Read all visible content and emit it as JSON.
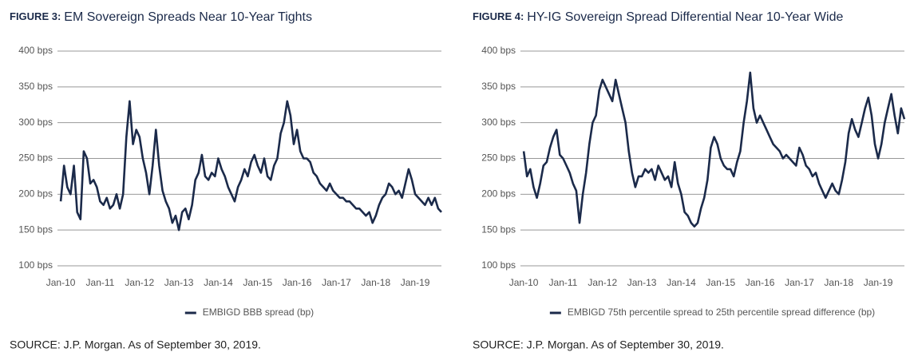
{
  "chart_data": [
    {
      "type": "line",
      "figure_label": "FIGURE 3:",
      "title": "EM Sovereign Spreads Near 10-Year Tights",
      "source": "SOURCE: J.P. Morgan. As of September 30, 2019.",
      "x": [
        "2010-01",
        "2010-02",
        "2010-03",
        "2010-04",
        "2010-05",
        "2010-06",
        "2010-07",
        "2010-08",
        "2010-09",
        "2010-10",
        "2010-11",
        "2010-12",
        "2011-01",
        "2011-02",
        "2011-03",
        "2011-04",
        "2011-05",
        "2011-06",
        "2011-07",
        "2011-08",
        "2011-09",
        "2011-10",
        "2011-11",
        "2011-12",
        "2012-01",
        "2012-02",
        "2012-03",
        "2012-04",
        "2012-05",
        "2012-06",
        "2012-07",
        "2012-08",
        "2012-09",
        "2012-10",
        "2012-11",
        "2012-12",
        "2013-01",
        "2013-02",
        "2013-03",
        "2013-04",
        "2013-05",
        "2013-06",
        "2013-07",
        "2013-08",
        "2013-09",
        "2013-10",
        "2013-11",
        "2013-12",
        "2014-01",
        "2014-02",
        "2014-03",
        "2014-04",
        "2014-05",
        "2014-06",
        "2014-07",
        "2014-08",
        "2014-09",
        "2014-10",
        "2014-11",
        "2014-12",
        "2015-01",
        "2015-02",
        "2015-03",
        "2015-04",
        "2015-05",
        "2015-06",
        "2015-07",
        "2015-08",
        "2015-09",
        "2015-10",
        "2015-11",
        "2015-12",
        "2016-01",
        "2016-02",
        "2016-03",
        "2016-04",
        "2016-05",
        "2016-06",
        "2016-07",
        "2016-08",
        "2016-09",
        "2016-10",
        "2016-11",
        "2016-12",
        "2017-01",
        "2017-02",
        "2017-03",
        "2017-04",
        "2017-05",
        "2017-06",
        "2017-07",
        "2017-08",
        "2017-09",
        "2017-10",
        "2017-11",
        "2017-12",
        "2018-01",
        "2018-02",
        "2018-03",
        "2018-04",
        "2018-05",
        "2018-06",
        "2018-07",
        "2018-08",
        "2018-09",
        "2018-10",
        "2018-11",
        "2018-12",
        "2019-01",
        "2019-02",
        "2019-03",
        "2019-04",
        "2019-05",
        "2019-06",
        "2019-07",
        "2019-08",
        "2019-09"
      ],
      "series": [
        {
          "name": "EMBIGD BBB spread (bp)",
          "color": "#1b2a4a",
          "values": [
            190,
            240,
            210,
            200,
            240,
            175,
            165,
            260,
            250,
            215,
            220,
            210,
            190,
            185,
            195,
            180,
            185,
            200,
            180,
            200,
            280,
            330,
            270,
            290,
            280,
            250,
            230,
            200,
            240,
            290,
            240,
            205,
            190,
            180,
            160,
            170,
            150,
            175,
            180,
            165,
            185,
            220,
            230,
            255,
            225,
            220,
            230,
            225,
            250,
            235,
            225,
            210,
            200,
            190,
            210,
            220,
            235,
            225,
            245,
            255,
            240,
            230,
            250,
            225,
            220,
            240,
            250,
            285,
            300,
            330,
            310,
            270,
            290,
            260,
            250,
            250,
            245,
            230,
            225,
            215,
            210,
            205,
            215,
            205,
            200,
            195,
            195,
            190,
            190,
            185,
            180,
            180,
            175,
            170,
            175,
            160,
            170,
            185,
            195,
            200,
            215,
            210,
            200,
            205,
            195,
            215,
            235,
            220,
            200,
            195,
            190,
            185,
            195,
            185,
            195,
            180,
            175
          ]
        }
      ],
      "xlim": [
        "2009-12",
        "2019-09"
      ],
      "xticks": [
        {
          "value": "2010-01",
          "label": "Jan-10"
        },
        {
          "value": "2011-01",
          "label": "Jan-11"
        },
        {
          "value": "2012-01",
          "label": "Jan-12"
        },
        {
          "value": "2013-01",
          "label": "Jan-13"
        },
        {
          "value": "2014-01",
          "label": "Jan-14"
        },
        {
          "value": "2015-01",
          "label": "Jan-15"
        },
        {
          "value": "2016-01",
          "label": "Jan-16"
        },
        {
          "value": "2017-01",
          "label": "Jan-17"
        },
        {
          "value": "2018-01",
          "label": "Jan-18"
        },
        {
          "value": "2019-01",
          "label": "Jan-19"
        }
      ],
      "ylim": [
        100,
        400
      ],
      "yticks": [
        {
          "value": 100,
          "label": "100 bps"
        },
        {
          "value": 150,
          "label": "150 bps"
        },
        {
          "value": 200,
          "label": "200 bps"
        },
        {
          "value": 250,
          "label": "250 bps"
        },
        {
          "value": 300,
          "label": "300 bps"
        },
        {
          "value": 350,
          "label": "350 bps"
        },
        {
          "value": 400,
          "label": "400 bps"
        }
      ],
      "grid": true,
      "legend": "bottom"
    },
    {
      "type": "line",
      "figure_label": "FIGURE 4:",
      "title": "HY-IG Sovereign Spread Differential Near 10-Year Wide",
      "source": "SOURCE: J.P. Morgan. As of September 30, 2019.",
      "x": [
        "2010-01",
        "2010-02",
        "2010-03",
        "2010-04",
        "2010-05",
        "2010-06",
        "2010-07",
        "2010-08",
        "2010-09",
        "2010-10",
        "2010-11",
        "2010-12",
        "2011-01",
        "2011-02",
        "2011-03",
        "2011-04",
        "2011-05",
        "2011-06",
        "2011-07",
        "2011-08",
        "2011-09",
        "2011-10",
        "2011-11",
        "2011-12",
        "2012-01",
        "2012-02",
        "2012-03",
        "2012-04",
        "2012-05",
        "2012-06",
        "2012-07",
        "2012-08",
        "2012-09",
        "2012-10",
        "2012-11",
        "2012-12",
        "2013-01",
        "2013-02",
        "2013-03",
        "2013-04",
        "2013-05",
        "2013-06",
        "2013-07",
        "2013-08",
        "2013-09",
        "2013-10",
        "2013-11",
        "2013-12",
        "2014-01",
        "2014-02",
        "2014-03",
        "2014-04",
        "2014-05",
        "2014-06",
        "2014-07",
        "2014-08",
        "2014-09",
        "2014-10",
        "2014-11",
        "2014-12",
        "2015-01",
        "2015-02",
        "2015-03",
        "2015-04",
        "2015-05",
        "2015-06",
        "2015-07",
        "2015-08",
        "2015-09",
        "2015-10",
        "2015-11",
        "2015-12",
        "2016-01",
        "2016-02",
        "2016-03",
        "2016-04",
        "2016-05",
        "2016-06",
        "2016-07",
        "2016-08",
        "2016-09",
        "2016-10",
        "2016-11",
        "2016-12",
        "2017-01",
        "2017-02",
        "2017-03",
        "2017-04",
        "2017-05",
        "2017-06",
        "2017-07",
        "2017-08",
        "2017-09",
        "2017-10",
        "2017-11",
        "2017-12",
        "2018-01",
        "2018-02",
        "2018-03",
        "2018-04",
        "2018-05",
        "2018-06",
        "2018-07",
        "2018-08",
        "2018-09",
        "2018-10",
        "2018-11",
        "2018-12",
        "2019-01",
        "2019-02",
        "2019-03",
        "2019-04",
        "2019-05",
        "2019-06",
        "2019-07",
        "2019-08",
        "2019-09"
      ],
      "series": [
        {
          "name": "EMBIGD 75th percentile spread to 25th percentile spread difference (bp)",
          "color": "#1b2a4a",
          "values": [
            260,
            225,
            235,
            210,
            195,
            215,
            240,
            245,
            265,
            280,
            290,
            255,
            250,
            240,
            230,
            215,
            205,
            160,
            200,
            230,
            270,
            300,
            310,
            345,
            360,
            350,
            340,
            330,
            360,
            340,
            320,
            300,
            260,
            230,
            210,
            225,
            225,
            235,
            230,
            235,
            220,
            240,
            230,
            220,
            225,
            210,
            245,
            215,
            200,
            175,
            170,
            160,
            155,
            160,
            180,
            195,
            220,
            265,
            280,
            270,
            250,
            240,
            235,
            235,
            225,
            245,
            260,
            300,
            330,
            370,
            320,
            300,
            310,
            300,
            290,
            280,
            270,
            265,
            260,
            250,
            255,
            250,
            245,
            240,
            265,
            255,
            240,
            235,
            225,
            230,
            215,
            205,
            195,
            205,
            215,
            205,
            200,
            220,
            245,
            285,
            305,
            290,
            280,
            300,
            320,
            335,
            310,
            270,
            250,
            270,
            300,
            320,
            340,
            310,
            285,
            320,
            305
          ]
        }
      ],
      "xlim": [
        "2009-12",
        "2019-09"
      ],
      "xticks": [
        {
          "value": "2010-01",
          "label": "Jan-10"
        },
        {
          "value": "2011-01",
          "label": "Jan-11"
        },
        {
          "value": "2012-01",
          "label": "Jan-12"
        },
        {
          "value": "2013-01",
          "label": "Jan-13"
        },
        {
          "value": "2014-01",
          "label": "Jan-14"
        },
        {
          "value": "2015-01",
          "label": "Jan-15"
        },
        {
          "value": "2016-01",
          "label": "Jan-16"
        },
        {
          "value": "2017-01",
          "label": "Jan-17"
        },
        {
          "value": "2018-01",
          "label": "Jan-18"
        },
        {
          "value": "2019-01",
          "label": "Jan-19"
        }
      ],
      "ylim": [
        100,
        400
      ],
      "yticks": [
        {
          "value": 100,
          "label": "100 bps"
        },
        {
          "value": 150,
          "label": "150 bps"
        },
        {
          "value": 200,
          "label": "200 bps"
        },
        {
          "value": 250,
          "label": "250 bps"
        },
        {
          "value": 300,
          "label": "300 bps"
        },
        {
          "value": 350,
          "label": "350 bps"
        },
        {
          "value": 400,
          "label": "400 bps"
        }
      ],
      "grid": true,
      "legend": "bottom"
    }
  ]
}
